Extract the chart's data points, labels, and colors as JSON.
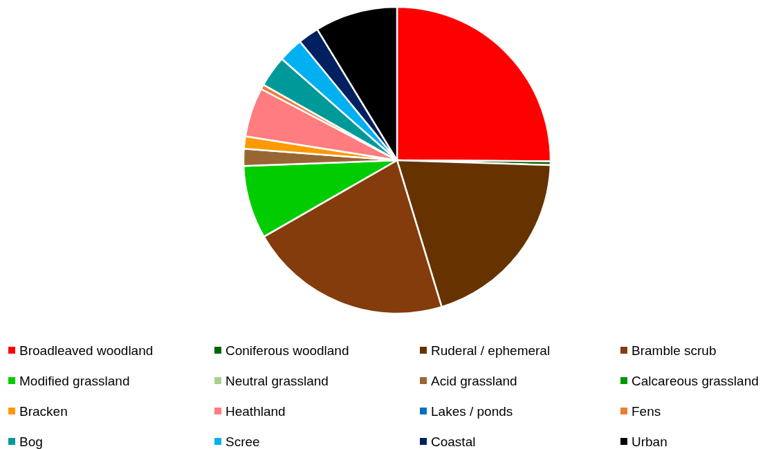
{
  "chart_data": {
    "type": "pie",
    "categories": [
      "Broadleaved woodland",
      "Coniferous woodland",
      "Ruderal / ephemeral",
      "Bramble scrub",
      "Modified grassland",
      "Neutral grassland",
      "Acid grassland",
      "Calcareous grassland",
      "Bracken",
      "Heathland",
      "Lakes / ponds",
      "Fens",
      "Bog",
      "Scree",
      "Coastal",
      "Urban"
    ],
    "values": [
      25.1,
      0.4,
      19.8,
      21.4,
      7.7,
      0,
      1.8,
      0,
      1.3,
      5.2,
      0,
      0.5,
      3.3,
      2.6,
      2.2,
      8.7
    ],
    "colors": [
      "#ff0000",
      "#006600",
      "#663300",
      "#843c0c",
      "#00cc00",
      "#a9d18e",
      "#996633",
      "#009900",
      "#ff9900",
      "#ff7c80",
      "#0070c0",
      "#ed7d31",
      "#009999",
      "#00b0f0",
      "#002060",
      "#000000"
    ],
    "legend": "bottom"
  }
}
